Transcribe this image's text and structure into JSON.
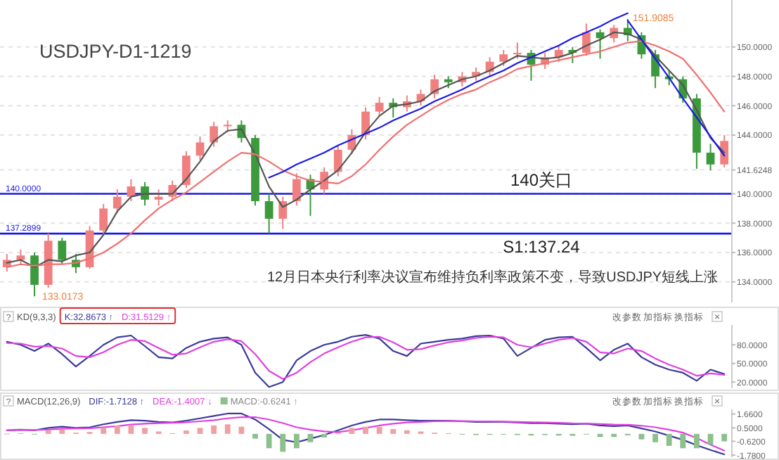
{
  "chart_data": [
    {
      "type": "candlestick",
      "title": "USDJPY-D1-1219",
      "subtitle": "12月日本央行利率决议宣布维持负利率政策不变，导致USDJPY短线上涨",
      "categories": [
        null,
        null,
        null,
        null,
        null,
        null,
        null,
        null,
        null,
        null,
        null,
        null,
        null,
        null,
        null,
        null,
        null,
        null,
        null,
        null,
        null,
        null,
        null,
        null,
        null,
        null,
        null,
        null,
        null,
        null,
        null,
        null,
        null,
        null,
        null,
        null,
        null,
        null,
        null,
        null,
        null,
        null,
        null,
        null,
        null,
        null,
        null,
        null,
        null,
        null,
        null,
        null,
        null
      ],
      "ohlc": [
        [
          135.0,
          135.9,
          134.7,
          135.5
        ],
        [
          135.5,
          136.2,
          135.2,
          135.8
        ],
        [
          135.8,
          136.0,
          133.0173,
          133.8
        ],
        [
          133.8,
          137.3,
          133.6,
          136.8
        ],
        [
          136.8,
          137.0,
          135.2,
          135.5
        ],
        [
          135.5,
          135.9,
          134.6,
          135.0
        ],
        [
          135.0,
          137.8,
          134.9,
          137.5
        ],
        [
          137.5,
          139.3,
          137.2,
          139.0
        ],
        [
          139.0,
          140.3,
          138.7,
          139.8
        ],
        [
          139.8,
          141.0,
          139.5,
          140.5
        ],
        [
          140.5,
          140.8,
          139.2,
          139.6
        ],
        [
          139.6,
          140.3,
          139.2,
          139.8
        ],
        [
          139.8,
          140.9,
          139.5,
          140.6
        ],
        [
          140.6,
          142.9,
          140.4,
          142.6
        ],
        [
          142.6,
          143.9,
          142.3,
          143.5
        ],
        [
          143.5,
          144.9,
          143.2,
          144.6
        ],
        [
          144.6,
          145.0,
          144.2,
          144.7
        ],
        [
          144.7,
          145.0,
          143.5,
          143.8
        ],
        [
          143.8,
          144.0,
          139.2,
          139.5
        ],
        [
          139.5,
          140.0,
          137.3,
          138.3
        ],
        [
          138.3,
          139.8,
          137.6,
          139.5
        ],
        [
          139.5,
          141.4,
          139.2,
          141.0
        ],
        [
          141.0,
          141.3,
          138.5,
          140.3
        ],
        [
          140.3,
          141.8,
          140.0,
          141.5
        ],
        [
          141.5,
          143.3,
          141.2,
          143.0
        ],
        [
          143.0,
          144.4,
          142.7,
          144.0
        ],
        [
          144.0,
          145.9,
          143.7,
          145.6
        ],
        [
          145.6,
          146.6,
          145.3,
          146.2
        ],
        [
          146.2,
          146.5,
          145.2,
          145.9
        ],
        [
          145.9,
          146.7,
          145.6,
          146.3
        ],
        [
          146.3,
          147.1,
          146.0,
          146.8
        ],
        [
          146.8,
          148.1,
          146.5,
          147.8
        ],
        [
          147.8,
          148.0,
          147.2,
          147.6
        ],
        [
          147.6,
          148.3,
          147.3,
          148.0
        ],
        [
          148.0,
          148.6,
          147.7,
          148.3
        ],
        [
          148.3,
          149.3,
          148.0,
          149.0
        ],
        [
          149.0,
          149.8,
          148.7,
          149.5
        ],
        [
          149.5,
          150.3,
          149.2,
          149.6
        ],
        [
          149.6,
          149.8,
          147.7,
          148.8
        ],
        [
          148.8,
          149.6,
          148.5,
          149.3
        ],
        [
          149.3,
          150.1,
          149.0,
          149.8
        ],
        [
          149.8,
          150.0,
          148.9,
          149.6
        ],
        [
          149.6,
          151.6,
          149.4,
          151.0
        ],
        [
          151.0,
          151.2,
          149.2,
          150.6
        ],
        [
          150.6,
          151.5,
          150.3,
          151.3
        ],
        [
          151.3,
          151.9085,
          150.4,
          150.8
        ],
        [
          150.8,
          151.0,
          149.2,
          149.5
        ],
        [
          149.5,
          149.8,
          147.2,
          148.0
        ],
        [
          148.0,
          148.4,
          147.4,
          147.8
        ],
        [
          147.8,
          148.0,
          146.2,
          146.5
        ],
        [
          146.5,
          146.8,
          141.7,
          142.8
        ],
        [
          142.8,
          143.4,
          141.6,
          142.0
        ],
        [
          142.0,
          144.0,
          141.8,
          143.6
        ]
      ],
      "colors": [
        "#f08080",
        "#f08080",
        "#3c9a3c",
        "#f08080",
        "#3c9a3c",
        "#3c9a3c",
        "#f08080",
        "#f08080",
        "#f08080",
        "#f08080",
        "#3c9a3c",
        "#f08080",
        "#f08080",
        "#f08080",
        "#f08080",
        "#f08080",
        "#f08080",
        "#3c9a3c",
        "#3c9a3c",
        "#3c9a3c",
        "#f08080",
        "#f08080",
        "#3c9a3c",
        "#f08080",
        "#f08080",
        "#f08080",
        "#f08080",
        "#f08080",
        "#3c9a3c",
        "#f08080",
        "#f08080",
        "#f08080",
        "#3c9a3c",
        "#f08080",
        "#f08080",
        "#f08080",
        "#f08080",
        "#f08080",
        "#3c9a3c",
        "#f08080",
        "#f08080",
        "#3c9a3c",
        "#f08080",
        "#3c9a3c",
        "#f08080",
        "#3c9a3c",
        "#3c9a3c",
        "#3c9a3c",
        "#3c9a3c",
        "#3c9a3c",
        "#3c9a3c",
        "#3c9a3c",
        "#f08080"
      ],
      "series": [
        {
          "type": "line",
          "color": "#555555",
          "values": [
            135.3,
            135.5,
            135.0,
            135.5,
            135.4,
            135.8,
            136.0,
            137.2,
            138.8,
            139.8,
            140.0,
            140.0,
            140.0,
            141.0,
            142.2,
            143.6,
            144.3,
            144.4,
            142.7,
            140.5,
            139.1,
            139.6,
            140.3,
            140.9,
            141.6,
            142.8,
            144.2,
            145.3,
            146.0,
            146.1,
            146.3,
            147.0,
            147.4,
            147.8,
            148.0,
            148.4,
            148.9,
            149.4,
            149.3,
            149.2,
            149.3,
            149.6,
            150.1,
            150.5,
            151.0,
            150.9,
            150.5,
            149.4,
            148.4,
            147.4,
            145.7,
            143.8,
            142.8
          ]
        },
        {
          "type": "line",
          "color": "#f07070",
          "values": [
            135.0,
            135.2,
            135.1,
            135.2,
            135.2,
            135.3,
            135.6,
            136.0,
            136.6,
            137.3,
            138.2,
            139.0,
            139.6,
            140.1,
            140.8,
            141.5,
            142.2,
            142.8,
            142.7,
            142.2,
            141.6,
            141.2,
            140.9,
            140.8,
            140.7,
            141.2,
            142.0,
            143.0,
            143.9,
            144.7,
            145.3,
            145.9,
            146.4,
            146.8,
            147.1,
            147.6,
            148.0,
            148.5,
            148.7,
            148.9,
            149.1,
            149.3,
            149.5,
            149.7,
            150.0,
            150.3,
            150.4,
            150.1,
            149.7,
            149.2,
            148.1,
            146.9,
            145.6
          ]
        },
        {
          "type": "line",
          "color": "#1a1ae6",
          "values": [
            null,
            null,
            null,
            null,
            null,
            null,
            null,
            null,
            null,
            null,
            null,
            null,
            null,
            null,
            null,
            null,
            null,
            null,
            null,
            141.1,
            141.5,
            142.0,
            142.4,
            142.8,
            143.3,
            143.7,
            144.1,
            144.5,
            145.0,
            145.4,
            145.8,
            146.3,
            146.7,
            147.1,
            147.6,
            148.0,
            148.4,
            148.9,
            149.3,
            149.7,
            150.1,
            150.6,
            151.0,
            151.4,
            151.9,
            152.3,
            null,
            null,
            null,
            null,
            null,
            null,
            null
          ]
        },
        {
          "type": "line",
          "color": "#1a1ae6",
          "values": [
            null,
            null,
            null,
            null,
            null,
            null,
            null,
            null,
            null,
            null,
            null,
            null,
            null,
            null,
            null,
            null,
            null,
            null,
            null,
            null,
            null,
            null,
            null,
            null,
            null,
            null,
            null,
            null,
            null,
            null,
            null,
            null,
            null,
            null,
            null,
            null,
            null,
            null,
            null,
            null,
            null,
            null,
            null,
            null,
            null,
            151.8,
            150.5,
            149.2,
            147.9,
            146.5,
            145.2,
            143.9,
            142.6
          ]
        }
      ],
      "ylim": [
        132.6,
        153.2
      ],
      "yticks": [
        {
          "value": 134,
          "label": "134.0000"
        },
        {
          "value": 136,
          "label": "136.0000"
        },
        {
          "value": 138,
          "label": "138.0000"
        },
        {
          "value": 140,
          "label": "140.0000"
        },
        {
          "value": 141.6248,
          "label": "141.6248"
        },
        {
          "value": 144,
          "label": "144.0000"
        },
        {
          "value": 146,
          "label": "146.0000"
        },
        {
          "value": 148,
          "label": "148.0000"
        },
        {
          "value": 150,
          "label": "150.0000"
        }
      ],
      "ref_lines": [
        {
          "axis": "y",
          "value": 140,
          "label": "140.0000",
          "color": "#1a1ae6"
        },
        {
          "axis": "y",
          "value": 137.2899,
          "label": "137.2899",
          "color": "#1a1ae6"
        }
      ],
      "annotations": [
        {
          "text": "140关口",
          "y": 140
        },
        {
          "text": "S1:137.24",
          "y": 137.24
        },
        "151.9085",
        "133.0173"
      ],
      "grid": "y",
      "tick_labels": "y"
    },
    {
      "type": "line",
      "legend_title": "KD(9,3,3)",
      "legend": "top left",
      "categories": [
        null,
        null,
        null,
        null,
        null,
        null,
        null,
        null,
        null,
        null,
        null,
        null,
        null,
        null,
        null,
        null,
        null,
        null,
        null,
        null,
        null,
        null,
        null,
        null,
        null,
        null,
        null,
        null,
        null,
        null,
        null,
        null,
        null,
        null,
        null,
        null,
        null,
        null,
        null,
        null,
        null,
        null,
        null,
        null,
        null,
        null,
        null,
        null,
        null,
        null,
        null,
        null,
        null
      ],
      "series": [
        {
          "name": "K:32.8673 ↑",
          "color": "#3a3a9a",
          "values": [
            85,
            80,
            70,
            82,
            65,
            45,
            62,
            80,
            92,
            95,
            78,
            60,
            58,
            75,
            85,
            90,
            92,
            80,
            35,
            12,
            20,
            55,
            70,
            80,
            85,
            93,
            96,
            90,
            70,
            62,
            82,
            85,
            88,
            90,
            94,
            95,
            90,
            62,
            75,
            88,
            92,
            93,
            75,
            55,
            72,
            82,
            60,
            48,
            40,
            35,
            22,
            40,
            32.8673
          ]
        },
        {
          "name": "D:31.5129 ↑",
          "color": "#e040e0",
          "values": [
            83,
            82,
            77,
            78,
            74,
            62,
            60,
            68,
            80,
            88,
            86,
            75,
            64,
            66,
            76,
            85,
            89,
            86,
            65,
            38,
            25,
            35,
            52,
            66,
            76,
            85,
            92,
            93,
            84,
            72,
            73,
            79,
            84,
            87,
            91,
            93,
            92,
            80,
            76,
            82,
            88,
            91,
            85,
            68,
            66,
            74,
            70,
            58,
            48,
            40,
            30,
            34,
            31.5129
          ]
        }
      ],
      "ylim": [
        10,
        112
      ],
      "yticks": [
        {
          "value": 20,
          "label": "20.0000"
        },
        {
          "value": 50,
          "label": "50.0000"
        },
        {
          "value": 80,
          "label": "80.0000"
        }
      ],
      "annotations": [
        "?",
        "改参数",
        "加指标",
        "换指标",
        "×"
      ]
    },
    {
      "type": "line",
      "legend_title": "MACD(12,26,9)",
      "legend": "top left",
      "categories": [
        null,
        null,
        null,
        null,
        null,
        null,
        null,
        null,
        null,
        null,
        null,
        null,
        null,
        null,
        null,
        null,
        null,
        null,
        null,
        null,
        null,
        null,
        null,
        null,
        null,
        null,
        null,
        null,
        null,
        null,
        null,
        null,
        null,
        null,
        null,
        null,
        null,
        null,
        null,
        null,
        null,
        null,
        null,
        null,
        null,
        null,
        null,
        null,
        null,
        null,
        null,
        null,
        null
      ],
      "series": [
        {
          "name": "DIF:-1.7128 ↑",
          "color": "#3a3a9a",
          "values": [
            0.3,
            0.35,
            0.3,
            0.5,
            0.6,
            0.5,
            0.55,
            0.8,
            1.0,
            1.15,
            1.1,
            1.0,
            0.95,
            1.1,
            1.3,
            1.5,
            1.7,
            1.7,
            1.2,
            0.4,
            -0.5,
            -0.7,
            -0.4,
            -0.1,
            0.3,
            0.7,
            1.0,
            1.2,
            1.2,
            1.15,
            1.1,
            1.1,
            1.1,
            1.05,
            1.0,
            1.0,
            1.0,
            0.95,
            0.9,
            0.9,
            0.85,
            0.8,
            0.85,
            0.7,
            0.65,
            0.7,
            0.45,
            0.2,
            -0.15,
            -0.5,
            -0.95,
            -1.35,
            -1.7128
          ]
        },
        {
          "name": "DEA:-1.4007 ↓",
          "color": "#e040e0",
          "values": [
            0.3,
            0.32,
            0.32,
            0.36,
            0.42,
            0.45,
            0.47,
            0.55,
            0.65,
            0.78,
            0.85,
            0.9,
            0.92,
            0.96,
            1.05,
            1.15,
            1.3,
            1.4,
            1.4,
            1.2,
            0.9,
            0.55,
            0.35,
            0.2,
            0.15,
            0.3,
            0.5,
            0.7,
            0.85,
            0.95,
            1.0,
            1.05,
            1.07,
            1.07,
            1.05,
            1.04,
            1.03,
            1.0,
            0.97,
            0.95,
            0.92,
            0.88,
            0.87,
            0.83,
            0.78,
            0.76,
            0.68,
            0.55,
            0.35,
            0.1,
            -0.35,
            -0.9,
            -1.4007
          ]
        },
        {
          "name": "MACD:-0.6241 ↑",
          "type": "bar",
          "color": "#888888",
          "values": [
            0.02,
            0.06,
            -0.04,
            0.28,
            0.36,
            0.1,
            0.16,
            0.5,
            0.7,
            0.74,
            0.5,
            0.2,
            0.06,
            0.28,
            0.5,
            0.7,
            0.8,
            0.6,
            -0.4,
            -1.2,
            -1.5,
            -1.2,
            -0.7,
            -0.3,
            0.1,
            0.5,
            0.6,
            0.6,
            0.4,
            0.3,
            0.2,
            0.1,
            0.06,
            -0.04,
            -0.1,
            -0.08,
            -0.06,
            -0.1,
            -0.14,
            -0.1,
            -0.14,
            -0.16,
            -0.04,
            -0.26,
            -0.26,
            -0.12,
            -0.46,
            -0.7,
            -1.0,
            -1.2,
            -1.2,
            -0.9,
            -0.6241
          ],
          "colors": [
            "#f0a0a0",
            "#f0a0a0",
            "#8cc08c",
            "#f0a0a0",
            "#f0a0a0",
            "#f0a0a0",
            "#f0a0a0",
            "#f0a0a0",
            "#f0a0a0",
            "#f0a0a0",
            "#f0a0a0",
            "#f0a0a0",
            "#f0a0a0",
            "#f0a0a0",
            "#f0a0a0",
            "#f0a0a0",
            "#f0a0a0",
            "#f0a0a0",
            "#8cc08c",
            "#8cc08c",
            "#8cc08c",
            "#8cc08c",
            "#8cc08c",
            "#8cc08c",
            "#f0a0a0",
            "#f0a0a0",
            "#f0a0a0",
            "#f0a0a0",
            "#f0a0a0",
            "#f0a0a0",
            "#f0a0a0",
            "#f0a0a0",
            "#f0a0a0",
            "#8cc08c",
            "#8cc08c",
            "#8cc08c",
            "#8cc08c",
            "#8cc08c",
            "#8cc08c",
            "#8cc08c",
            "#8cc08c",
            "#8cc08c",
            "#8cc08c",
            "#8cc08c",
            "#8cc08c",
            "#8cc08c",
            "#8cc08c",
            "#8cc08c",
            "#8cc08c",
            "#8cc08c",
            "#8cc08c",
            "#8cc08c",
            "#8cc08c"
          ]
        }
      ],
      "ylim": [
        -1.95,
        2.05
      ],
      "yticks": [
        {
          "value": -1.78,
          "label": "-1.7800"
        },
        {
          "value": -0.62,
          "label": "-0.6200"
        },
        {
          "value": 0.5,
          "label": "0.5000"
        },
        {
          "value": 1.66,
          "label": "1.6600"
        }
      ],
      "annotations": [
        "?",
        "改参数",
        "加指标",
        "换指标",
        "×"
      ]
    }
  ]
}
